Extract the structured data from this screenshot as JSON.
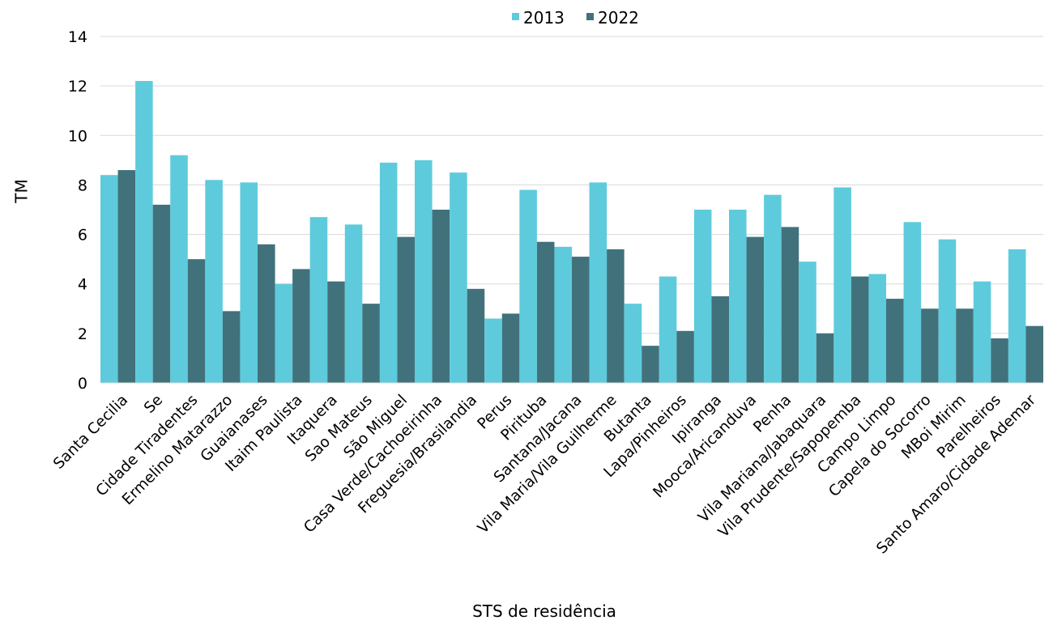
{
  "chart_data": {
    "type": "bar",
    "title": "",
    "xlabel": "STS de residência",
    "ylabel": "TM",
    "ylim": [
      0,
      14
    ],
    "yticks": [
      0,
      2,
      4,
      6,
      8,
      10,
      12,
      14
    ],
    "grid": true,
    "legend_position": "top-center",
    "categories": [
      "Santa Cecilia",
      "Se",
      "Cidade Tiradentes",
      "Ermelino Matarazzo",
      "Guaianases",
      "Itaim Paulista",
      "Itaquera",
      "Sao Mateus",
      "São Miguel",
      "Casa Verde/Cachoeirinha",
      "Freguesia/Brasilandia",
      "Perus",
      "Pirituba",
      "Santana/Jacana",
      "Vila Maria/Vila Guilherme",
      "Butanta",
      "Lapa/Pinheiros",
      "Ipiranga",
      "Mooca/Aricanduva",
      "Penha",
      "Vila Mariana/Jabaquara",
      "Vila Prudente/Sapopemba",
      "Campo Limpo",
      "Capela do Socorro",
      "MBoi Mirim",
      "Parelheiros",
      "Santo Amaro/Cidade Ademar"
    ],
    "series": [
      {
        "name": "2013",
        "color": "#5ecbdc",
        "values": [
          8.4,
          12.2,
          9.2,
          8.2,
          8.1,
          4.0,
          6.7,
          6.4,
          8.9,
          9.0,
          8.5,
          2.6,
          7.8,
          5.5,
          8.1,
          3.2,
          4.3,
          7.0,
          7.0,
          7.6,
          4.9,
          7.9,
          4.4,
          6.5,
          5.8,
          4.1,
          5.4
        ]
      },
      {
        "name": "2022",
        "color": "#41727c",
        "values": [
          8.6,
          7.2,
          5.0,
          2.9,
          5.6,
          4.6,
          4.1,
          3.2,
          5.9,
          7.0,
          3.8,
          2.8,
          5.7,
          5.1,
          5.4,
          1.5,
          2.1,
          3.5,
          5.9,
          6.3,
          2.0,
          4.3,
          3.4,
          3.0,
          3.0,
          1.8,
          2.3
        ]
      }
    ]
  }
}
